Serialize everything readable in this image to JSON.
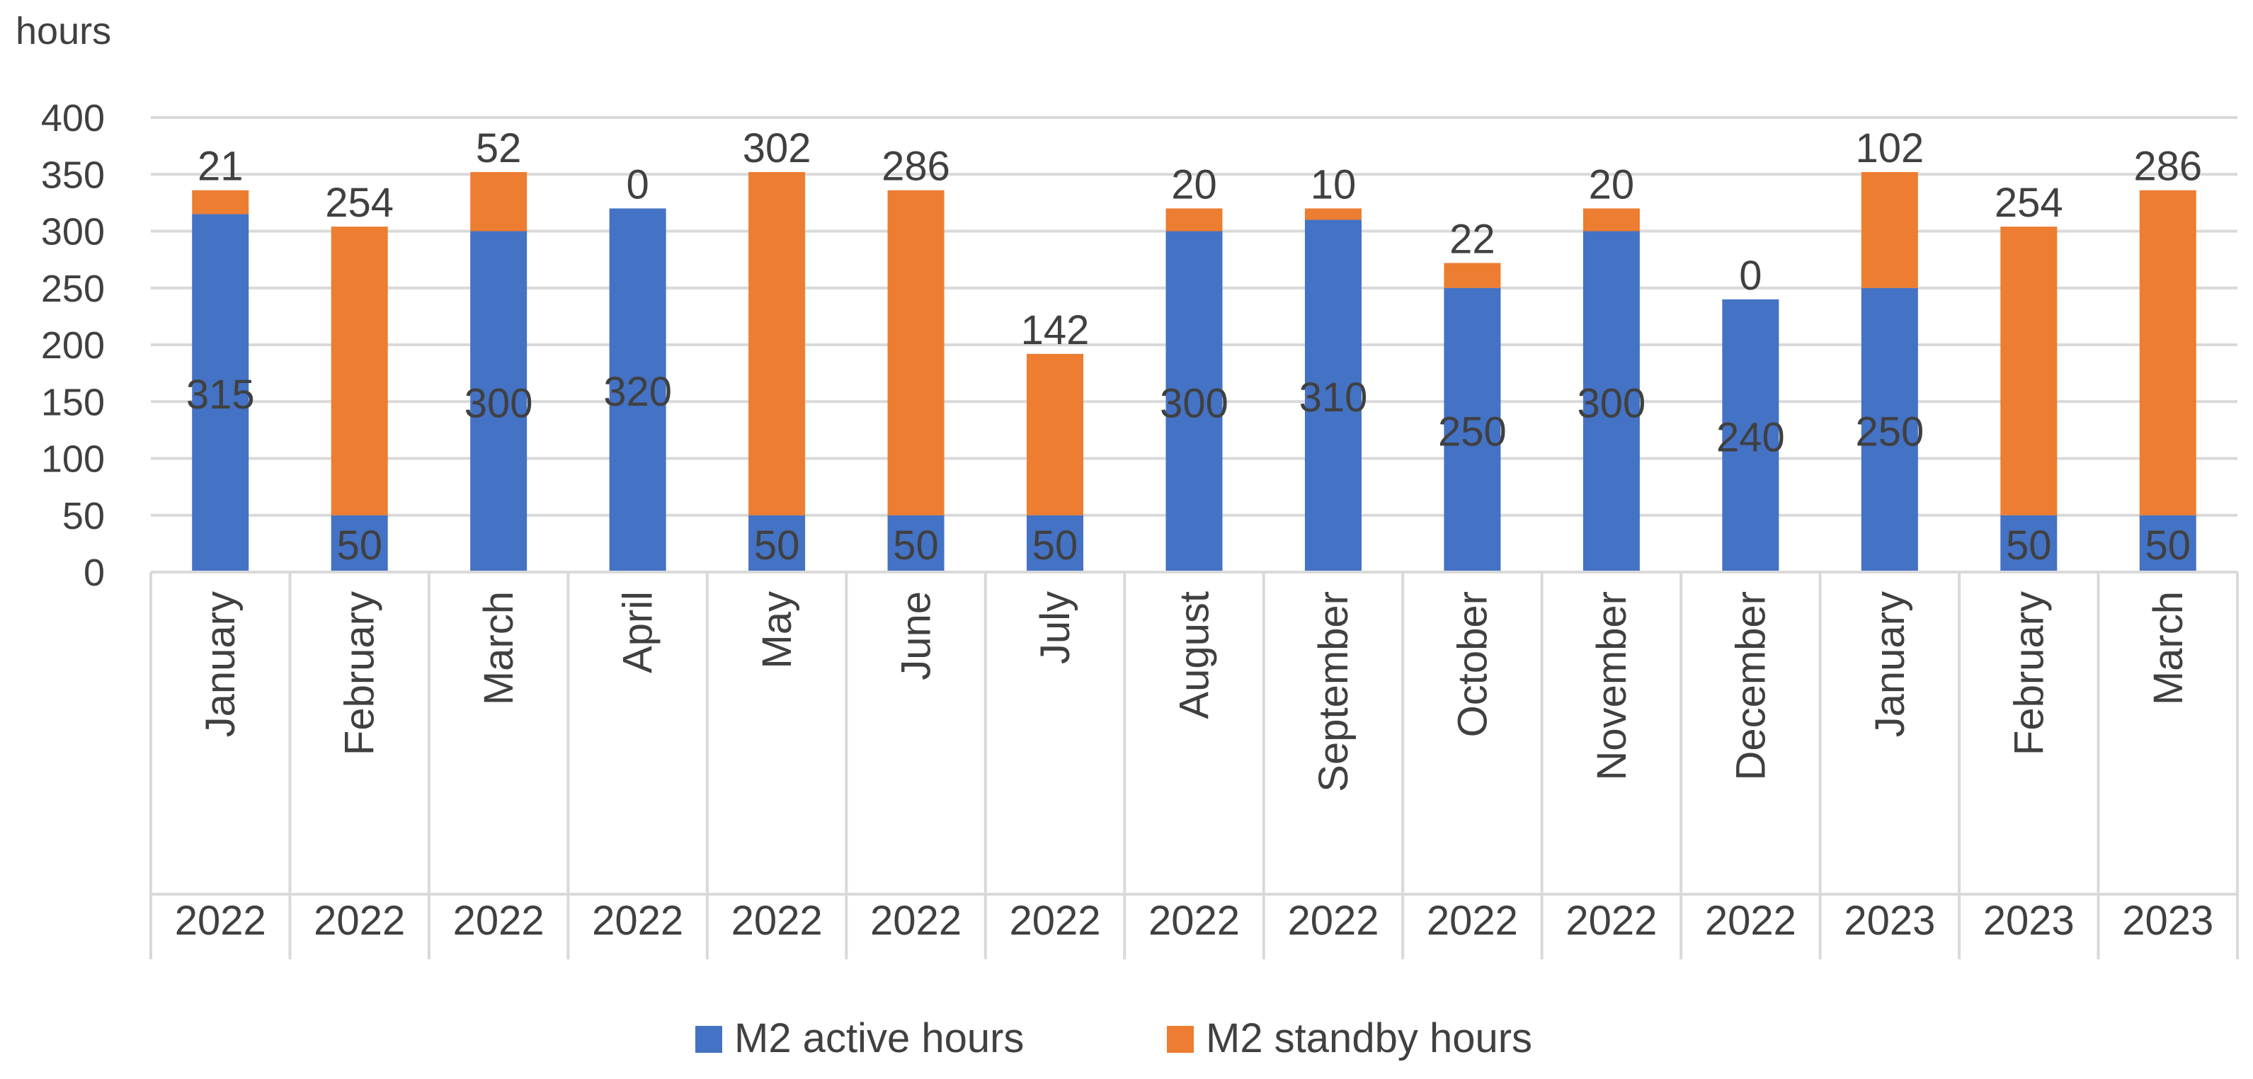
{
  "chart_data": {
    "type": "bar",
    "stacked": true,
    "ylabel": "hours",
    "ylim": [
      0,
      400
    ],
    "yticks": [
      0,
      50,
      100,
      150,
      200,
      250,
      300,
      350,
      400
    ],
    "grid": true,
    "legend_position": "bottom",
    "categories": [
      {
        "month": "January",
        "year": "2022"
      },
      {
        "month": "February",
        "year": "2022"
      },
      {
        "month": "March",
        "year": "2022"
      },
      {
        "month": "April",
        "year": "2022"
      },
      {
        "month": "May",
        "year": "2022"
      },
      {
        "month": "June",
        "year": "2022"
      },
      {
        "month": "July",
        "year": "2022"
      },
      {
        "month": "August",
        "year": "2022"
      },
      {
        "month": "September",
        "year": "2022"
      },
      {
        "month": "October",
        "year": "2022"
      },
      {
        "month": "November",
        "year": "2022"
      },
      {
        "month": "December",
        "year": "2022"
      },
      {
        "month": "January",
        "year": "2023"
      },
      {
        "month": "February",
        "year": "2023"
      },
      {
        "month": "March",
        "year": "2023"
      }
    ],
    "series": [
      {
        "name": "M2 active hours",
        "color": "#4472C4",
        "values": [
          315,
          50,
          300,
          320,
          50,
          50,
          50,
          300,
          310,
          250,
          300,
          240,
          250,
          50,
          50
        ]
      },
      {
        "name": "M2 standby hours",
        "color": "#ED7D31",
        "values": [
          21,
          254,
          52,
          0,
          302,
          286,
          142,
          20,
          10,
          22,
          20,
          0,
          102,
          254,
          286
        ]
      }
    ]
  }
}
